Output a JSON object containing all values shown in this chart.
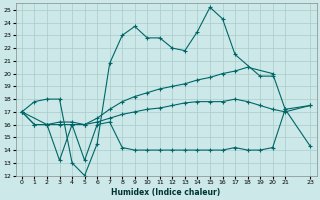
{
  "xlabel": "Humidex (Indice chaleur)",
  "background_color": "#cce8e8",
  "grid_color": "#aacccc",
  "line_color": "#006666",
  "xlim": [
    -0.5,
    23.5
  ],
  "ylim": [
    12,
    25.5
  ],
  "xticks": [
    0,
    1,
    2,
    3,
    4,
    5,
    6,
    7,
    8,
    9,
    10,
    11,
    12,
    13,
    14,
    15,
    16,
    17,
    18,
    19,
    20,
    21,
    23
  ],
  "yticks": [
    12,
    13,
    14,
    15,
    16,
    17,
    18,
    19,
    20,
    21,
    22,
    23,
    24,
    25
  ],
  "series": [
    {
      "x": [
        0,
        1,
        2,
        3,
        4,
        5,
        6,
        7,
        8,
        9,
        10,
        11,
        12,
        13,
        14,
        15,
        16,
        17,
        19,
        20
      ],
      "y": [
        17,
        17.8,
        18,
        18,
        13,
        12,
        14.5,
        20.8,
        23,
        23.7,
        22.8,
        22.8,
        22,
        21.8,
        23.3,
        25.2,
        24.3,
        21.5,
        19.8,
        19.8
      ]
    },
    {
      "x": [
        0,
        1,
        2,
        3,
        4,
        5,
        6,
        7,
        8,
        9,
        10,
        11,
        12,
        13,
        14,
        15,
        16,
        17,
        18,
        20,
        21,
        23
      ],
      "y": [
        17,
        16,
        16,
        16.2,
        16.2,
        16,
        16.5,
        17.2,
        17.8,
        18.2,
        18.5,
        18.8,
        19.0,
        19.2,
        19.5,
        19.7,
        20.0,
        20.2,
        20.5,
        20.0,
        17.2,
        17.5
      ]
    },
    {
      "x": [
        0,
        1,
        2,
        3,
        4,
        5,
        6,
        7,
        8,
        9,
        10,
        11,
        12,
        13,
        14,
        15,
        16,
        17,
        18,
        19,
        20,
        21,
        23
      ],
      "y": [
        17,
        16,
        16,
        16,
        16,
        16,
        16.2,
        16.5,
        16.8,
        17.0,
        17.2,
        17.3,
        17.5,
        17.7,
        17.8,
        17.8,
        17.8,
        18.0,
        17.8,
        17.5,
        17.2,
        17.0,
        17.5
      ]
    },
    {
      "x": [
        0,
        2,
        3,
        4,
        5,
        6,
        7,
        8,
        9,
        10,
        11,
        12,
        13,
        14,
        15,
        16,
        17,
        18,
        19,
        20,
        21,
        23
      ],
      "y": [
        17,
        16,
        13.2,
        16,
        13.2,
        16,
        16.2,
        14.2,
        14.0,
        14.0,
        14.0,
        14.0,
        14.0,
        14.0,
        14.0,
        14.0,
        14.2,
        14.0,
        14.0,
        14.2,
        17.2,
        14.3
      ]
    }
  ]
}
